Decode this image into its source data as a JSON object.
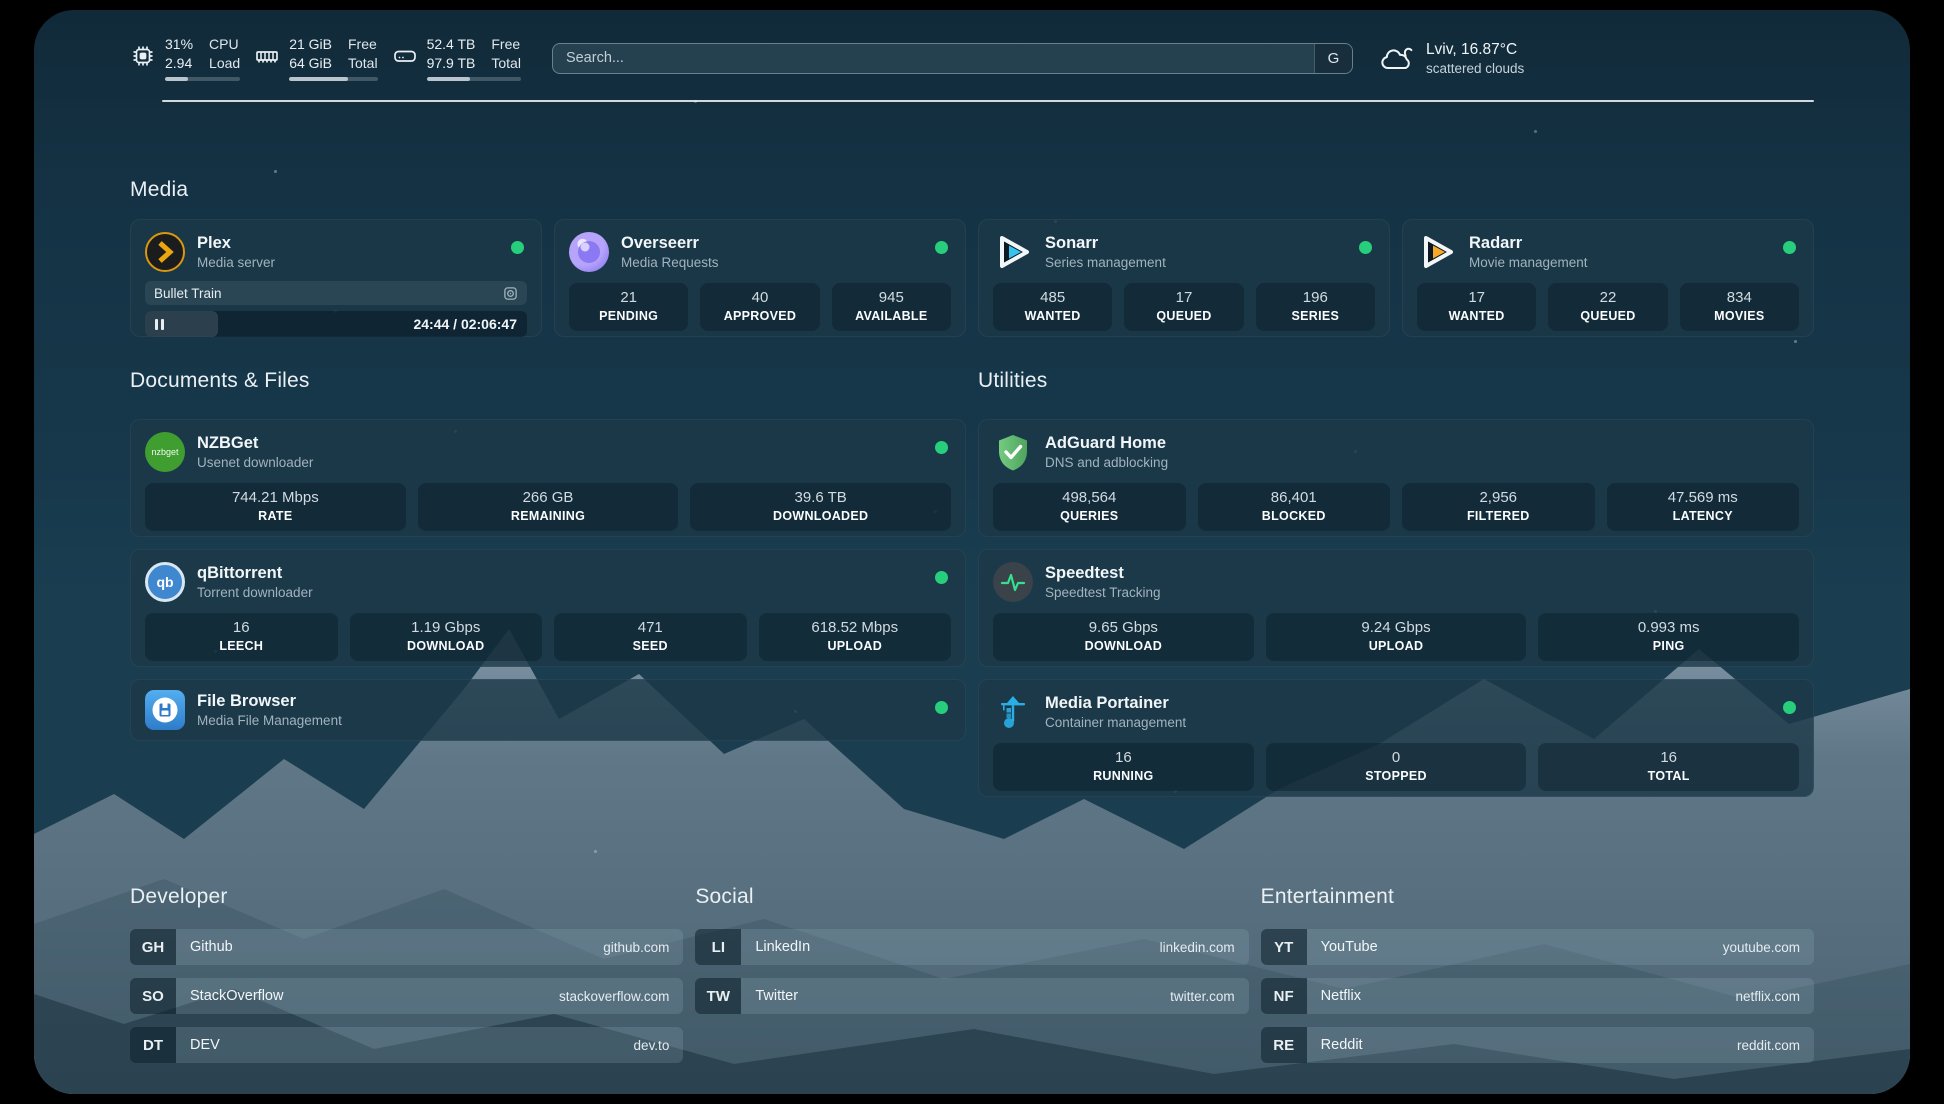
{
  "topbar": {
    "cpu": {
      "value": "31%",
      "load": "2.94",
      "label1": "CPU",
      "label2": "Load",
      "progress_pct": 31
    },
    "ram": {
      "free": "21 GiB",
      "total": "64 GiB",
      "label1": "Free",
      "label2": "Total",
      "progress_pct": 67
    },
    "disk": {
      "free": "52.4 TB",
      "total": "97.9 TB",
      "label1": "Free",
      "label2": "Total",
      "progress_pct": 46
    },
    "search": {
      "placeholder": "Search...",
      "button_label": "G"
    },
    "weather": {
      "location_temp": "Lviv, 16.87°C",
      "condition": "scattered clouds"
    }
  },
  "sections": {
    "media": "Media",
    "documents": "Documents & Files",
    "utilities": "Utilities",
    "developer": "Developer",
    "social": "Social",
    "entertainment": "Entertainment"
  },
  "apps": {
    "plex": {
      "name": "Plex",
      "desc": "Media server",
      "now_playing": "Bullet Train",
      "time": "24:44 / 02:06:47",
      "progress_pct": 19
    },
    "overseerr": {
      "name": "Overseerr",
      "desc": "Media Requests",
      "stats": [
        {
          "value": "21",
          "label": "PENDING"
        },
        {
          "value": "40",
          "label": "APPROVED"
        },
        {
          "value": "945",
          "label": "AVAILABLE"
        }
      ]
    },
    "sonarr": {
      "name": "Sonarr",
      "desc": "Series management",
      "stats": [
        {
          "value": "485",
          "label": "WANTED"
        },
        {
          "value": "17",
          "label": "QUEUED"
        },
        {
          "value": "196",
          "label": "SERIES"
        }
      ]
    },
    "radarr": {
      "name": "Radarr",
      "desc": "Movie management",
      "stats": [
        {
          "value": "17",
          "label": "WANTED"
        },
        {
          "value": "22",
          "label": "QUEUED"
        },
        {
          "value": "834",
          "label": "MOVIES"
        }
      ]
    },
    "nzbget": {
      "name": "NZBGet",
      "desc": "Usenet downloader",
      "icon_text": "nzbget",
      "stats": [
        {
          "value": "744.21 Mbps",
          "label": "RATE"
        },
        {
          "value": "266 GB",
          "label": "REMAINING"
        },
        {
          "value": "39.6 TB",
          "label": "DOWNLOADED"
        }
      ]
    },
    "qbittorrent": {
      "name": "qBittorrent",
      "desc": "Torrent downloader",
      "icon_text": "qb",
      "stats": [
        {
          "value": "16",
          "label": "LEECH"
        },
        {
          "value": "1.19 Gbps",
          "label": "DOWNLOAD"
        },
        {
          "value": "471",
          "label": "SEED"
        },
        {
          "value": "618.52 Mbps",
          "label": "UPLOAD"
        }
      ]
    },
    "filebrowser": {
      "name": "File Browser",
      "desc": "Media File Management"
    },
    "adguard": {
      "name": "AdGuard Home",
      "desc": "DNS and adblocking",
      "stats": [
        {
          "value": "498,564",
          "label": "QUERIES"
        },
        {
          "value": "86,401",
          "label": "BLOCKED"
        },
        {
          "value": "2,956",
          "label": "FILTERED"
        },
        {
          "value": "47.569 ms",
          "label": "LATENCY"
        }
      ]
    },
    "speedtest": {
      "name": "Speedtest",
      "desc": "Speedtest Tracking",
      "stats": [
        {
          "value": "9.65 Gbps",
          "label": "DOWNLOAD"
        },
        {
          "value": "9.24 Gbps",
          "label": "UPLOAD"
        },
        {
          "value": "0.993 ms",
          "label": "PING"
        }
      ]
    },
    "portainer": {
      "name": "Media Portainer",
      "desc": "Container management",
      "stats": [
        {
          "value": "16",
          "label": "RUNNING"
        },
        {
          "value": "0",
          "label": "STOPPED"
        },
        {
          "value": "16",
          "label": "TOTAL"
        }
      ]
    }
  },
  "bookmarks": {
    "developer": [
      {
        "abbr": "GH",
        "name": "Github",
        "url": "github.com"
      },
      {
        "abbr": "SO",
        "name": "StackOverflow",
        "url": "stackoverflow.com"
      },
      {
        "abbr": "DT",
        "name": "DEV",
        "url": "dev.to"
      }
    ],
    "social": [
      {
        "abbr": "LI",
        "name": "LinkedIn",
        "url": "linkedin.com"
      },
      {
        "abbr": "TW",
        "name": "Twitter",
        "url": "twitter.com"
      }
    ],
    "entertainment": [
      {
        "abbr": "YT",
        "name": "YouTube",
        "url": "youtube.com"
      },
      {
        "abbr": "NF",
        "name": "Netflix",
        "url": "netflix.com"
      },
      {
        "abbr": "RE",
        "name": "Reddit",
        "url": "reddit.com"
      }
    ]
  },
  "colors": {
    "status_online": "#27cf7c",
    "plex_accent": "#e5a00d",
    "sonarr_accent": "#37c3f0",
    "radarr_accent": "#f7a824",
    "speedtest_accent": "#35e08e"
  }
}
